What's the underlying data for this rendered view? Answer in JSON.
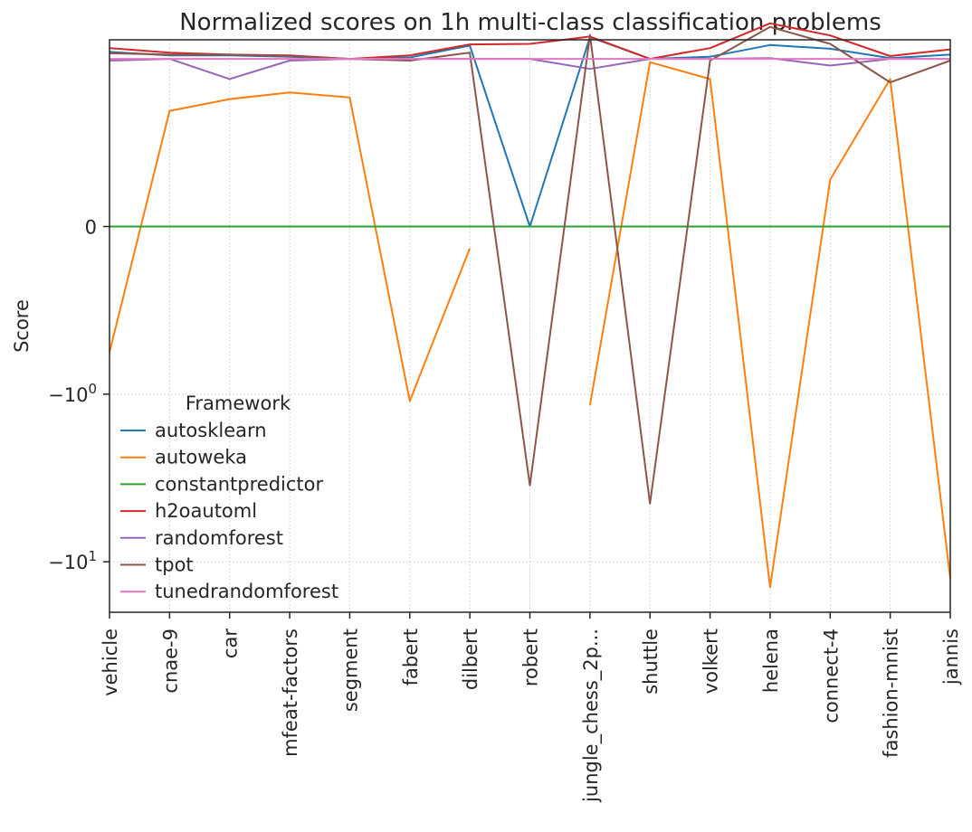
{
  "chart_data": {
    "type": "line",
    "title": "Normalized scores on 1h multi-class classification problems",
    "xlabel": "",
    "ylabel": "Score",
    "yscale": "symlog",
    "yticks": [
      {
        "value": 0,
        "label": "0"
      },
      {
        "value": -1,
        "label": "−10",
        "sup": "0"
      },
      {
        "value": -10,
        "label": "−10",
        "sup": "1"
      }
    ],
    "ylim": [
      -20,
      1.3
    ],
    "grid": true,
    "legend": {
      "title": "Framework",
      "placement": "lower-left"
    },
    "categories": [
      "vehicle",
      "cnae-9",
      "car",
      "mfeat-factors",
      "segment",
      "fabert",
      "dilbert",
      "robert",
      "jungle_chess_2p...",
      "shuttle",
      "volkert",
      "helena",
      "connect-4",
      "fashion-mnist",
      "jannis"
    ],
    "series": [
      {
        "name": "autosklearn",
        "color": "#1f77b4",
        "values": [
          1.1,
          1.05,
          1.05,
          1.03,
          1.0,
          1.02,
          1.2,
          0,
          1.35,
          1.0,
          1.03,
          1.21,
          1.15,
          1.01,
          1.06
        ]
      },
      {
        "name": "autoweka",
        "color": "#ff7f0e",
        "values": [
          -0.75,
          0.69,
          0.76,
          0.8,
          0.77,
          -1.1,
          -0.13,
          null,
          -1.16,
          0.98,
          0.88,
          -14.2,
          0.28,
          0.88,
          -12.6
        ]
      },
      {
        "name": "constantpredictor",
        "color": "#2ca02c",
        "values": [
          0,
          0,
          0,
          0,
          0,
          0,
          0,
          0,
          0,
          0,
          0,
          0,
          0,
          0,
          0
        ]
      },
      {
        "name": "h2oautoml",
        "color": "#d62728",
        "values": [
          1.16,
          1.09,
          1.06,
          1.05,
          1.0,
          1.05,
          1.22,
          1.23,
          1.36,
          1.0,
          1.16,
          1.63,
          1.38,
          1.04,
          1.14
        ]
      },
      {
        "name": "randomforest",
        "color": "#9467bd",
        "values": [
          0.99,
          1.0,
          0.88,
          0.99,
          1.0,
          1.0,
          1.0,
          1.0,
          0.94,
          1.0,
          1.0,
          1.01,
          0.96,
          1.0,
          1.0
        ]
      },
      {
        "name": "tpot",
        "color": "#8c564b",
        "values": [
          1.08,
          1.06,
          1.06,
          1.04,
          1.0,
          0.99,
          1.09,
          -3.5,
          1.39,
          -4.5,
          0.99,
          1.55,
          1.23,
          0.86,
          0.99
        ]
      },
      {
        "name": "tunedrandomforest",
        "color": "#e377c2",
        "values": [
          1.0,
          1.0,
          1.0,
          1.0,
          1.0,
          1.0,
          1.0,
          1.0,
          1.0,
          1.0,
          1.0,
          1.0,
          1.0,
          1.0,
          1.0
        ]
      }
    ]
  }
}
